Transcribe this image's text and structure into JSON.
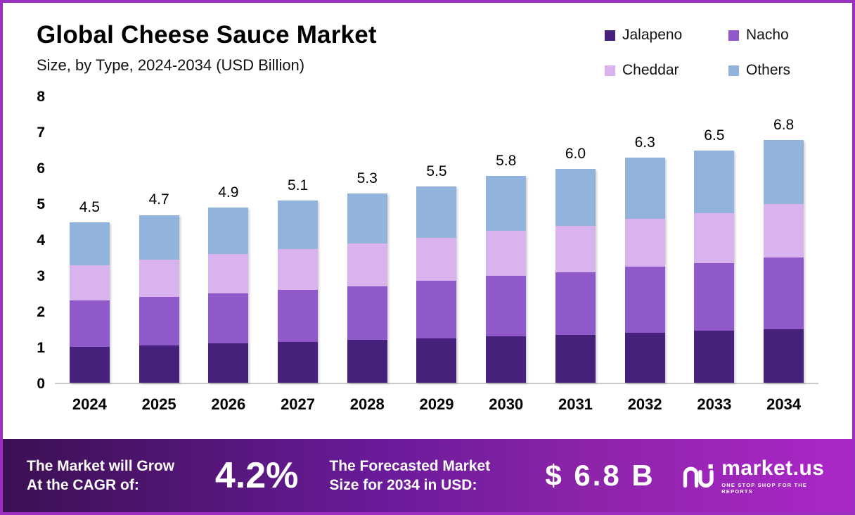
{
  "header": {
    "title": "Global Cheese Sauce Market",
    "subtitle": "Size, by Type, 2024-2034 (USD Billion)"
  },
  "legend": {
    "items": [
      {
        "label": "Jalapeno",
        "color": "#45217c"
      },
      {
        "label": "Nacho",
        "color": "#9059c9"
      },
      {
        "label": "Cheddar",
        "color": "#d9b3ee"
      },
      {
        "label": "Others",
        "color": "#92b4dc"
      }
    ]
  },
  "chart_data": {
    "type": "bar",
    "stacked": true,
    "title": "Global Cheese Sauce Market Size, by Type, 2024-2034 (USD Billion)",
    "xlabel": "",
    "ylabel": "USD Billion",
    "ylim": [
      0,
      8
    ],
    "yticks": [
      0,
      1,
      2,
      3,
      4,
      5,
      6,
      7,
      8
    ],
    "grid": false,
    "legend_position": "top-right",
    "categories": [
      "2024",
      "2025",
      "2026",
      "2027",
      "2028",
      "2029",
      "2030",
      "2031",
      "2032",
      "2033",
      "2034"
    ],
    "totals": [
      4.5,
      4.7,
      4.9,
      5.1,
      5.3,
      5.5,
      5.8,
      6.0,
      6.3,
      6.5,
      6.8
    ],
    "series": [
      {
        "name": "Jalapeno",
        "color": "#45217c",
        "values": [
          1.0,
          1.05,
          1.1,
          1.15,
          1.2,
          1.25,
          1.3,
          1.35,
          1.4,
          1.45,
          1.5
        ]
      },
      {
        "name": "Nacho",
        "color": "#9059c9",
        "values": [
          1.3,
          1.35,
          1.4,
          1.45,
          1.5,
          1.6,
          1.7,
          1.75,
          1.85,
          1.9,
          2.0
        ]
      },
      {
        "name": "Cheddar",
        "color": "#d9b3ee",
        "values": [
          1.0,
          1.05,
          1.1,
          1.15,
          1.2,
          1.2,
          1.25,
          1.3,
          1.35,
          1.4,
          1.5
        ]
      },
      {
        "name": "Others",
        "color": "#92b4dc",
        "values": [
          1.2,
          1.25,
          1.3,
          1.35,
          1.4,
          1.45,
          1.55,
          1.6,
          1.7,
          1.75,
          1.8
        ]
      }
    ]
  },
  "banner": {
    "cagr_label": "The Market will Grow At the CAGR of:",
    "cagr_value": "4.2%",
    "forecast_label": "The Forecasted Market Size for 2034 in USD:",
    "forecast_value": "$ 6.8 B",
    "brand": "market.us",
    "tagline": "ONE STOP SHOP FOR THE REPORTS"
  }
}
